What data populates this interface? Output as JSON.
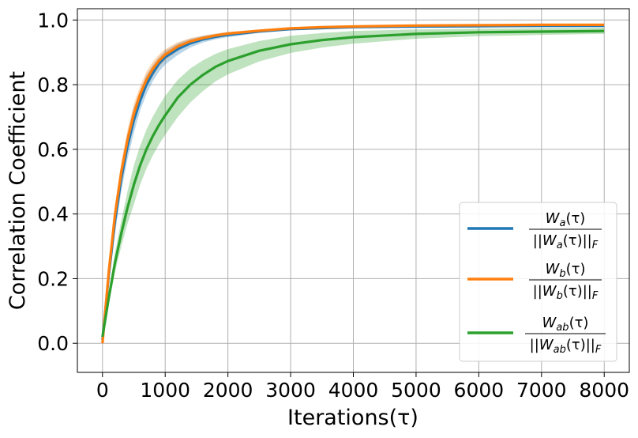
{
  "chart_data": {
    "type": "line",
    "xlabel": "Iterations(τ)",
    "ylabel": "Correlation Coefficient",
    "xlim": [
      -400,
      8400
    ],
    "ylim": [
      -0.09,
      1.035
    ],
    "x_ticks": [
      0,
      1000,
      2000,
      3000,
      4000,
      5000,
      6000,
      7000,
      8000
    ],
    "y_ticks": [
      0.0,
      0.2,
      0.4,
      0.6,
      0.8,
      1.0
    ],
    "x_tick_labels": [
      "0",
      "1000",
      "2000",
      "3000",
      "4000",
      "5000",
      "6000",
      "7000",
      "8000"
    ],
    "y_tick_labels": [
      "0.0",
      "0.2",
      "0.4",
      "0.6",
      "0.8",
      "1.0"
    ],
    "grid": true,
    "legend_position": "lower-right",
    "x": [
      0,
      100,
      200,
      300,
      400,
      500,
      600,
      700,
      800,
      900,
      1000,
      1200,
      1400,
      1600,
      1800,
      2000,
      2500,
      3000,
      3500,
      4000,
      5000,
      6000,
      7000,
      8000
    ],
    "series": [
      {
        "name": "W_a(τ) / ||W_a(τ)||_F",
        "color": "#1f77b4",
        "values": [
          0.01,
          0.21,
          0.38,
          0.51,
          0.61,
          0.69,
          0.75,
          0.8,
          0.835,
          0.865,
          0.885,
          0.91,
          0.928,
          0.94,
          0.948,
          0.954,
          0.965,
          0.972,
          0.975,
          0.978,
          0.98,
          0.981,
          0.982,
          0.982
        ],
        "band_lower": [
          0.0,
          0.18,
          0.34,
          0.47,
          0.57,
          0.65,
          0.72,
          0.77,
          0.81,
          0.84,
          0.862,
          0.892,
          0.915,
          0.93,
          0.94,
          0.947,
          0.96,
          0.968,
          0.972,
          0.975,
          0.978,
          0.979,
          0.98,
          0.98
        ],
        "band_upper": [
          0.02,
          0.24,
          0.42,
          0.55,
          0.65,
          0.73,
          0.78,
          0.83,
          0.86,
          0.885,
          0.905,
          0.928,
          0.942,
          0.951,
          0.957,
          0.962,
          0.97,
          0.976,
          0.978,
          0.981,
          0.982,
          0.983,
          0.984,
          0.984
        ]
      },
      {
        "name": "W_b(τ) / ||W_b(τ)||_F",
        "color": "#ff7f0e",
        "values": [
          0.0,
          0.22,
          0.4,
          0.53,
          0.63,
          0.71,
          0.77,
          0.815,
          0.848,
          0.874,
          0.893,
          0.918,
          0.934,
          0.944,
          0.952,
          0.958,
          0.967,
          0.974,
          0.978,
          0.98,
          0.983,
          0.984,
          0.985,
          0.985
        ],
        "band_lower": [
          -0.01,
          0.2,
          0.37,
          0.5,
          0.6,
          0.68,
          0.745,
          0.79,
          0.826,
          0.855,
          0.876,
          0.905,
          0.924,
          0.937,
          0.946,
          0.953,
          0.963,
          0.97,
          0.975,
          0.978,
          0.981,
          0.982,
          0.983,
          0.983
        ],
        "band_upper": [
          0.01,
          0.24,
          0.43,
          0.56,
          0.66,
          0.74,
          0.795,
          0.84,
          0.87,
          0.893,
          0.91,
          0.931,
          0.944,
          0.951,
          0.958,
          0.963,
          0.971,
          0.977,
          0.98,
          0.982,
          0.985,
          0.986,
          0.987,
          0.987
        ]
      },
      {
        "name": "W_ab(τ) / ||W_ab(τ)||_F",
        "color": "#2ca02c",
        "values": [
          0.02,
          0.14,
          0.25,
          0.34,
          0.42,
          0.49,
          0.55,
          0.6,
          0.64,
          0.675,
          0.705,
          0.76,
          0.8,
          0.83,
          0.855,
          0.873,
          0.905,
          0.925,
          0.938,
          0.947,
          0.957,
          0.962,
          0.964,
          0.966
        ],
        "band_lower": [
          0.015,
          0.12,
          0.22,
          0.3,
          0.37,
          0.43,
          0.49,
          0.54,
          0.58,
          0.615,
          0.645,
          0.7,
          0.745,
          0.78,
          0.81,
          0.832,
          0.872,
          0.898,
          0.915,
          0.927,
          0.942,
          0.95,
          0.954,
          0.957
        ],
        "band_upper": [
          0.025,
          0.16,
          0.28,
          0.38,
          0.47,
          0.55,
          0.61,
          0.66,
          0.7,
          0.735,
          0.765,
          0.815,
          0.85,
          0.875,
          0.895,
          0.91,
          0.935,
          0.951,
          0.96,
          0.966,
          0.971,
          0.973,
          0.975,
          0.976
        ]
      }
    ],
    "legend_entries": [
      {
        "num_base": "W",
        "num_sub": "a",
        "den_sub": "a"
      },
      {
        "num_base": "W",
        "num_sub": "b",
        "den_sub": "b"
      },
      {
        "num_base": "W",
        "num_sub": "ab",
        "den_sub": "ab"
      }
    ]
  }
}
